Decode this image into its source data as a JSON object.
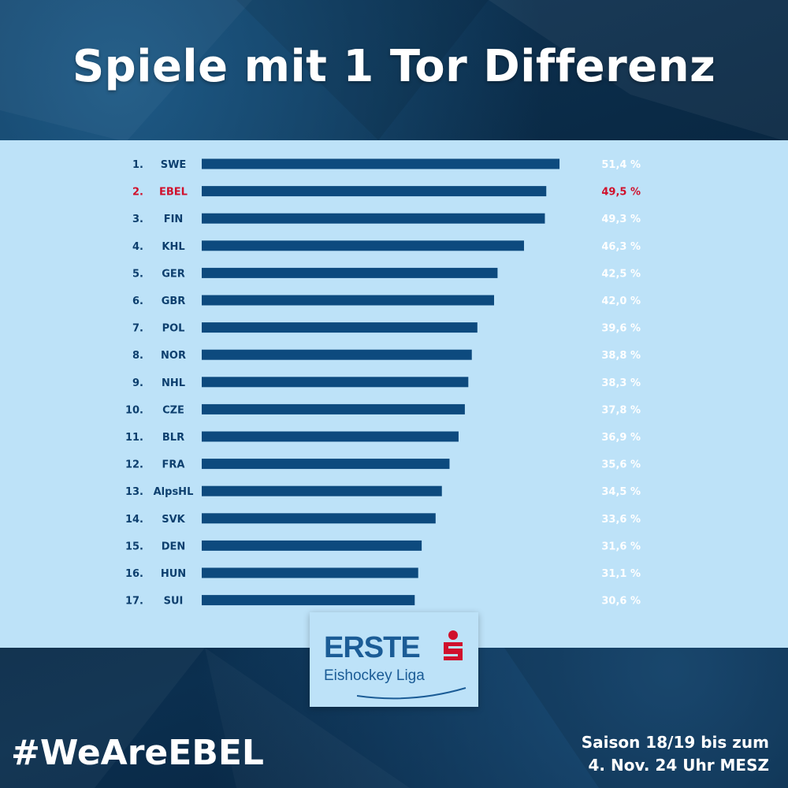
{
  "title": "Spiele mit 1 Tor Differenz",
  "hashtag": "#WeAreEBEL",
  "footnote": {
    "line1": "Saison 18/19 bis zum",
    "line2": "4. Nov. 24 Uhr MESZ"
  },
  "logo": {
    "word": "ERSTE",
    "sub": "Eishockey Liga"
  },
  "colors": {
    "bar": "#0d4a7e",
    "label": "#0d3f6e",
    "highlight": "#d0102c",
    "value_text": "#ffffff",
    "panel": "#bde2f8"
  },
  "chart_data": {
    "type": "bar",
    "orientation": "horizontal",
    "xlim": [
      0,
      60
    ],
    "ranks": [
      "1.",
      "2.",
      "3.",
      "4.",
      "5.",
      "6.",
      "7.",
      "8.",
      "9.",
      "10.",
      "11.",
      "12.",
      "13.",
      "14.",
      "15.",
      "16.",
      "17."
    ],
    "categories": [
      "SWE",
      "EBEL",
      "FIN",
      "KHL",
      "GER",
      "GBR",
      "POL",
      "NOR",
      "NHL",
      "CZE",
      "BLR",
      "FRA",
      "AlpsHL",
      "SVK",
      "DEN",
      "HUN",
      "SUI"
    ],
    "values": [
      51.4,
      49.5,
      49.3,
      46.3,
      42.5,
      42.0,
      39.6,
      38.8,
      38.3,
      37.8,
      36.9,
      35.6,
      34.5,
      33.6,
      31.6,
      31.1,
      30.6
    ],
    "value_labels": [
      "51,4 %",
      "49,5 %",
      "49,3 %",
      "46,3 %",
      "42,5 %",
      "42,0 %",
      "39,6 %",
      "38,8 %",
      "38,3 %",
      "37,8 %",
      "36,9 %",
      "35,6 %",
      "34,5 %",
      "33,6 %",
      "31,6 %",
      "31,1 %",
      "30,6 %"
    ],
    "highlight": "EBEL"
  }
}
